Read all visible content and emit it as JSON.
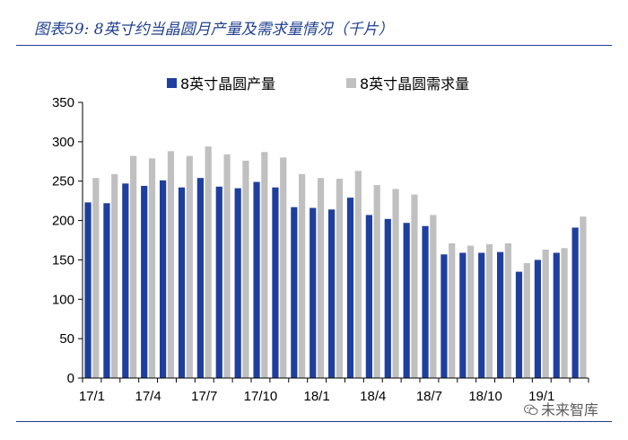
{
  "figure": {
    "title": "图表59: 8英寸约当晶圆月产量及需求量情况（千片）"
  },
  "watermark": {
    "text": "未来智库",
    "icon": "wechat-icon"
  },
  "chart_data": {
    "type": "bar",
    "title": "图表59: 8英寸约当晶圆月产量及需求量情况（千片）",
    "xlabel": "",
    "ylabel": "",
    "ylim": [
      0,
      350
    ],
    "yticks": [
      0,
      50,
      100,
      150,
      200,
      250,
      300,
      350
    ],
    "grid": false,
    "legend_position": "top",
    "categories": [
      "17/1",
      "17/2",
      "17/3",
      "17/4",
      "17/5",
      "17/6",
      "17/7",
      "17/8",
      "17/9",
      "17/10",
      "17/11",
      "17/12",
      "18/1",
      "18/2",
      "18/3",
      "18/4",
      "18/5",
      "18/6",
      "18/7",
      "18/8",
      "18/9",
      "18/10",
      "18/11",
      "18/12",
      "19/1",
      "19/2",
      "19/3"
    ],
    "xtick_labels": [
      "17/1",
      "17/4",
      "17/7",
      "17/10",
      "18/1",
      "18/4",
      "18/7",
      "18/10",
      "19/1"
    ],
    "series": [
      {
        "name": "8英寸晶圆产量",
        "color": "#1f3f9f",
        "values": [
          223,
          222,
          247,
          244,
          251,
          242,
          254,
          243,
          241,
          249,
          242,
          217,
          216,
          214,
          229,
          207,
          202,
          197,
          193,
          157,
          159,
          159,
          160,
          135,
          150,
          159,
          191
        ]
      },
      {
        "name": "8英寸晶圆需求量",
        "color": "#c0c0c0",
        "values": [
          254,
          259,
          282,
          279,
          288,
          282,
          294,
          284,
          276,
          287,
          280,
          259,
          254,
          253,
          263,
          245,
          240,
          233,
          207,
          171,
          168,
          170,
          171,
          146,
          163,
          165,
          205
        ]
      }
    ]
  }
}
